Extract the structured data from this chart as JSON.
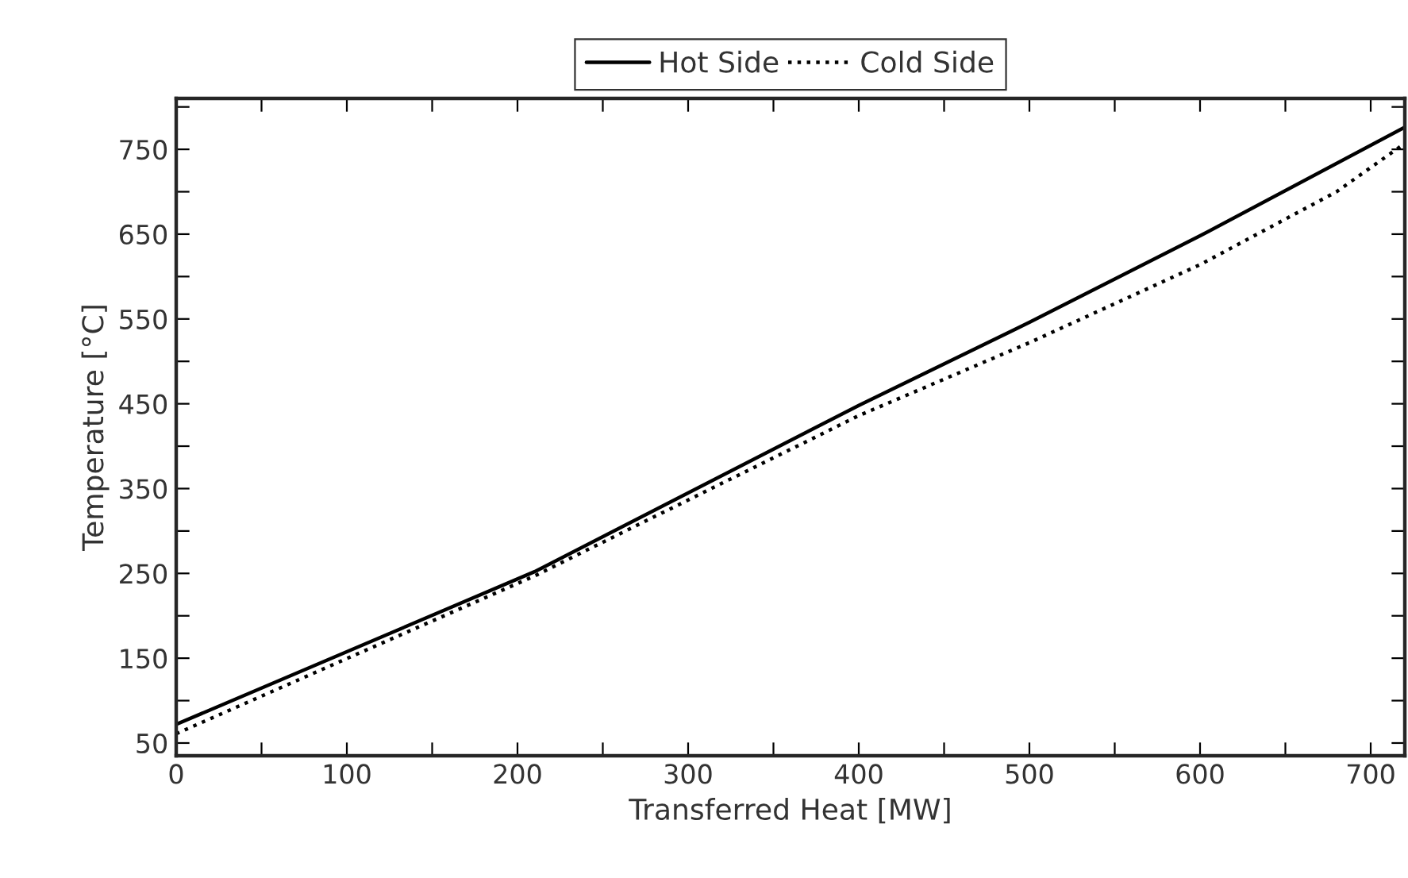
{
  "chart_data": {
    "type": "line",
    "xlabel": "Transferred Heat [MW]",
    "ylabel": "Temperature [°C]",
    "series": [
      {
        "name": "Hot Side",
        "color": "#000000",
        "line_style": "solid",
        "x": [
          0,
          210,
          400,
          500,
          600,
          720
        ],
        "values": [
          72,
          252,
          448,
          546,
          648,
          776
        ]
      },
      {
        "name": "Cold Side",
        "color": "#000000",
        "line_style": "dotted",
        "x": [
          0,
          210,
          400,
          500,
          600,
          680,
          720
        ],
        "values": [
          61,
          247,
          436,
          522,
          614,
          700,
          757
        ]
      }
    ],
    "xlim": [
      0,
      720
    ],
    "ylim": [
      35,
      810
    ],
    "xticks": [
      0,
      {
        "value": 50,
        "label": null
      },
      100,
      {
        "value": 150,
        "label": null
      },
      200,
      {
        "value": 250,
        "label": null
      },
      300,
      {
        "value": 350,
        "label": null
      },
      400,
      {
        "value": 450,
        "label": null
      },
      500,
      {
        "value": 550,
        "label": null
      },
      600,
      {
        "value": 650,
        "label": null
      },
      700
    ],
    "yticks": [
      50,
      {
        "value": 100,
        "label": null
      },
      150,
      {
        "value": 200,
        "label": null
      },
      250,
      {
        "value": 300,
        "label": null
      },
      350,
      {
        "value": 400,
        "label": null
      },
      450,
      {
        "value": 500,
        "label": null
      },
      550,
      {
        "value": 600,
        "label": null
      },
      650,
      {
        "value": 700,
        "label": null
      },
      750,
      {
        "value": 800,
        "label": null
      }
    ],
    "legend": "top",
    "grid": false
  }
}
